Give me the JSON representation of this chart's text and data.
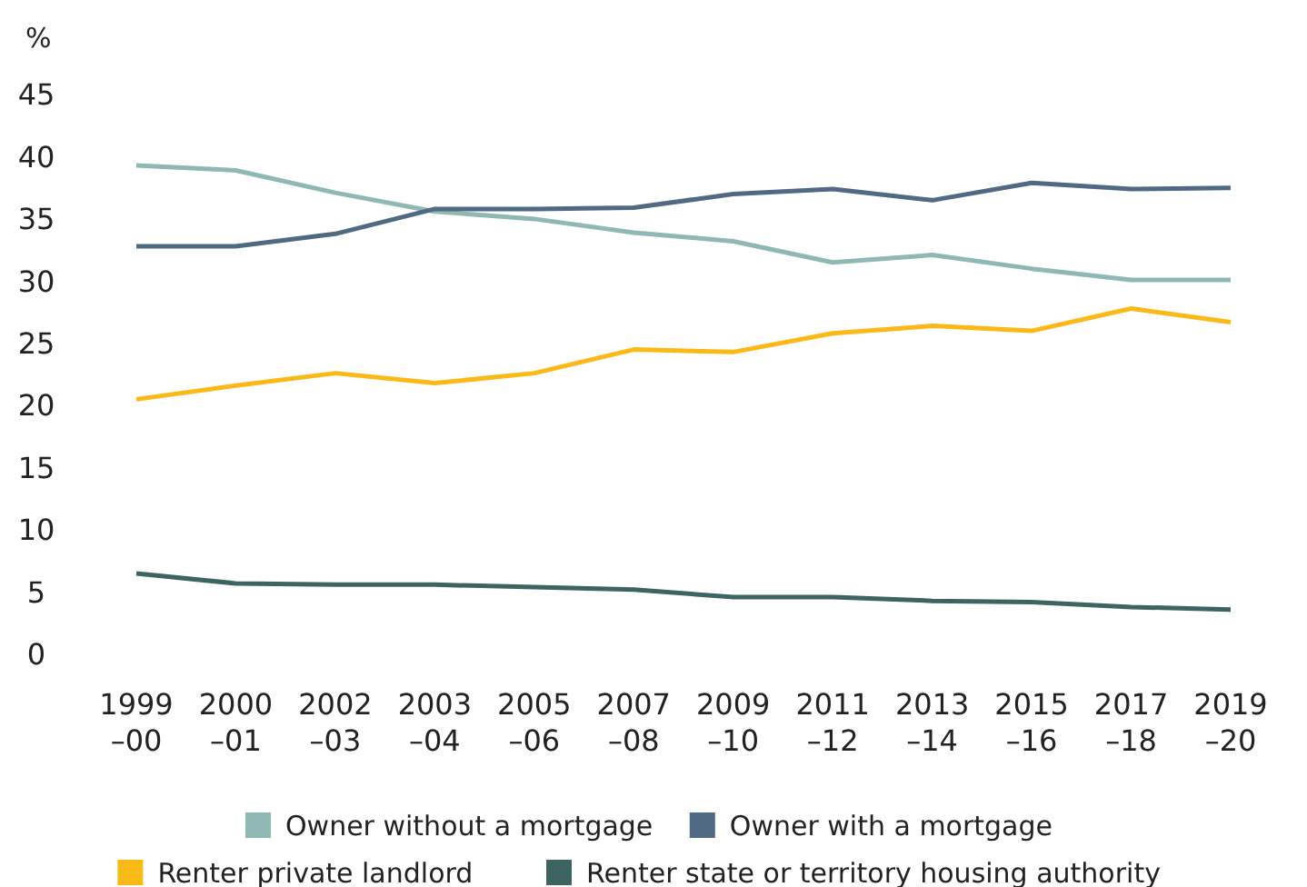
{
  "chart_data": {
    "type": "line",
    "ylabel": "%",
    "categories": [
      "1999–00",
      "2000–01",
      "2002–03",
      "2003–04",
      "2005–06",
      "2007–08",
      "2009–10",
      "2011–12",
      "2013–14",
      "2015–16",
      "2017–18",
      "2019–20"
    ],
    "series": [
      {
        "name": "Owner without a mortgage",
        "color": "#8fb8b4",
        "values": [
          39.3,
          38.9,
          37.1,
          35.6,
          35.0,
          33.9,
          33.2,
          31.5,
          32.1,
          31.0,
          30.1,
          30.1
        ]
      },
      {
        "name": "Owner with a mortgage",
        "color": "#4f6a82",
        "values": [
          32.8,
          32.8,
          33.8,
          35.8,
          35.8,
          35.9,
          37.0,
          37.4,
          36.5,
          37.9,
          37.4,
          37.5
        ]
      },
      {
        "name": "Renter private landlord",
        "color": "#fbb917",
        "values": [
          20.5,
          21.6,
          22.6,
          21.8,
          22.6,
          24.5,
          24.3,
          25.8,
          26.4,
          26.0,
          27.8,
          26.7
        ]
      },
      {
        "name": "Renter state or territory housing authority",
        "color": "#3d6460",
        "values": [
          6.5,
          5.7,
          5.6,
          5.6,
          5.4,
          5.2,
          4.6,
          4.6,
          4.3,
          4.2,
          3.8,
          3.6
        ]
      }
    ],
    "ylim": [
      0,
      45
    ],
    "yticks": [
      0,
      5,
      10,
      15,
      20,
      25,
      30,
      35,
      40,
      45
    ],
    "grid": false,
    "legend": "bottom",
    "marker": "none",
    "line_style": "solid"
  }
}
